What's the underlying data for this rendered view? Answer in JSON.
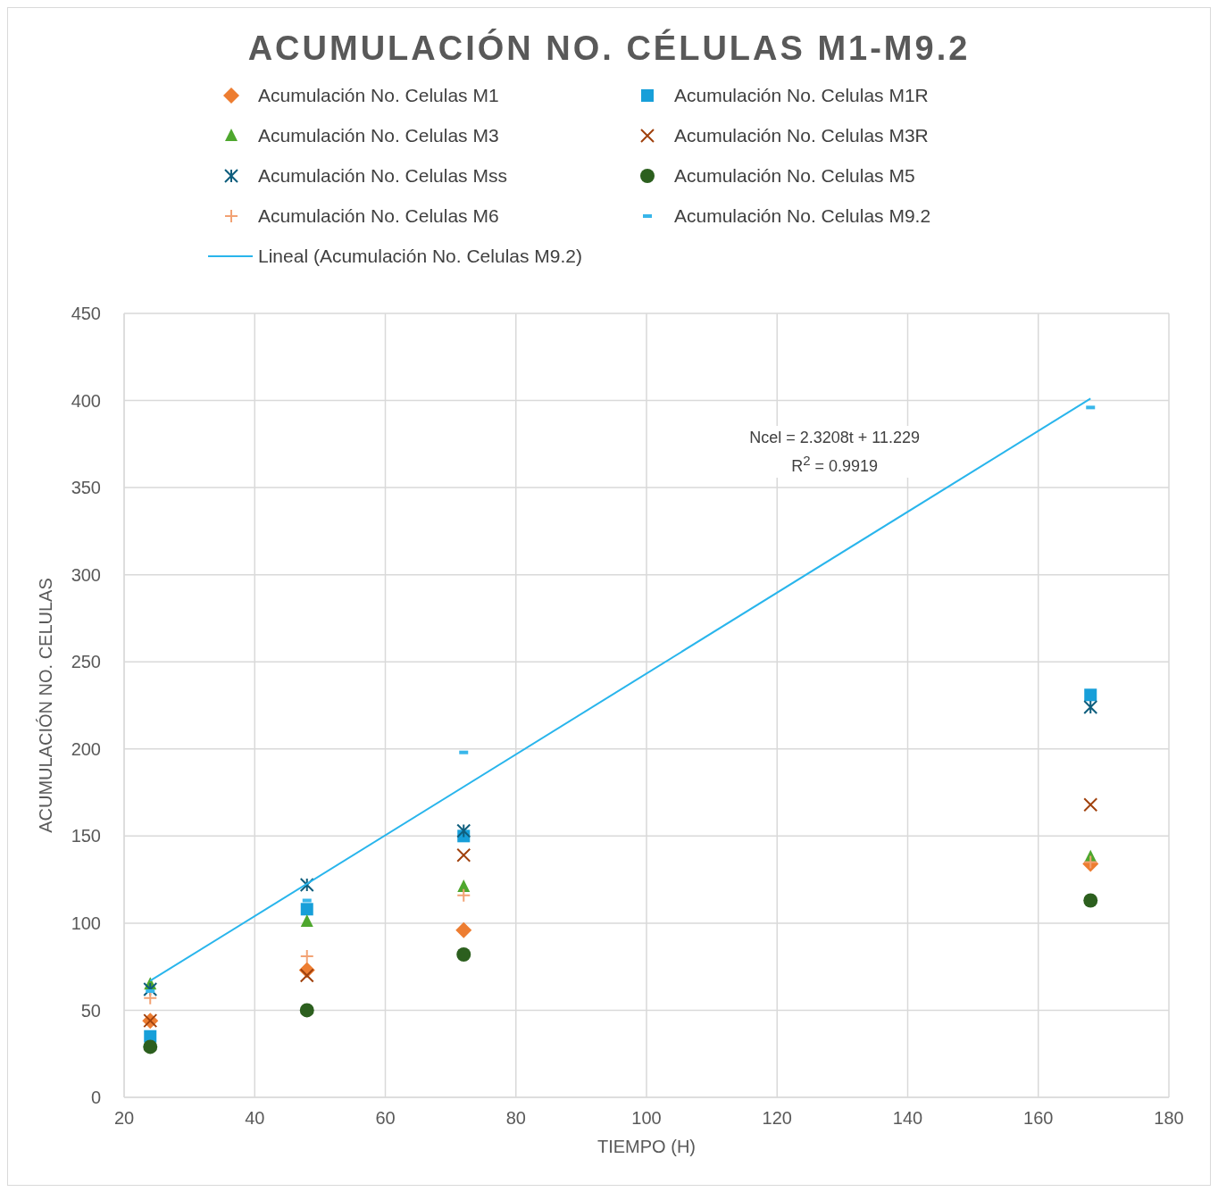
{
  "chart_data": {
    "type": "scatter",
    "title": "ACUMULACIÓN NO. CÉLULAS M1-M9.2",
    "xlabel": "TIEMPO (H)",
    "ylabel": "ACUMULACIÓN NO. CELULAS",
    "x": [
      24,
      48,
      72,
      168
    ],
    "series": [
      {
        "name": "Acumulación No. Celulas M1",
        "color": "#ed7d31",
        "marker": "diamond",
        "values": [
          44,
          73,
          96,
          134
        ]
      },
      {
        "name": "Acumulación No. Celulas M1R",
        "color": "#179fd9",
        "marker": "square",
        "values": [
          35,
          108,
          150,
          231
        ]
      },
      {
        "name": "Acumulación No. Celulas M3",
        "color": "#4ea72e",
        "marker": "triangle",
        "values": [
          65,
          101,
          121,
          138
        ]
      },
      {
        "name": "Acumulación No. Celulas M3R",
        "color": "#a0410d",
        "marker": "cross",
        "values": [
          44,
          70,
          139,
          168
        ]
      },
      {
        "name": "Acumulación No. Celulas Mss",
        "color": "#0f5e7d",
        "values": [
          62,
          122,
          153,
          224
        ]
      },
      {
        "name": "Acumulación No. Celulas M5",
        "color": "#2c5f1e",
        "marker": "circle",
        "values": [
          29,
          50,
          82,
          113
        ]
      },
      {
        "name": "Acumulación No. Celulas M6",
        "color": "#f2a274",
        "values": [
          57,
          81,
          116,
          135
        ]
      },
      {
        "name": "Acumulación No. Celulas M9.2",
        "color": "#38b6ea",
        "values": [
          61,
          113,
          198,
          396
        ]
      },
      {
        "name": "Lineal (Acumulación No. Celulas M9.2)",
        "type": "line",
        "color": "#29b5ec",
        "marker": "none",
        "x": [
          24,
          168
        ],
        "values": [
          66.9,
          401.1
        ]
      }
    ],
    "annotations": [
      "Ncel = 2.3208t + 11.229",
      "R$^{2}$ = 0.9919"
    ],
    "xlim": [
      20,
      180
    ],
    "xticks": [
      20,
      40,
      60,
      80,
      100,
      120,
      140,
      160,
      180
    ],
    "ylim": [
      0,
      450
    ],
    "yticks": [
      0,
      50,
      100,
      150,
      200,
      250,
      300,
      350,
      400,
      450
    ],
    "grid": true,
    "legend": "top"
  }
}
